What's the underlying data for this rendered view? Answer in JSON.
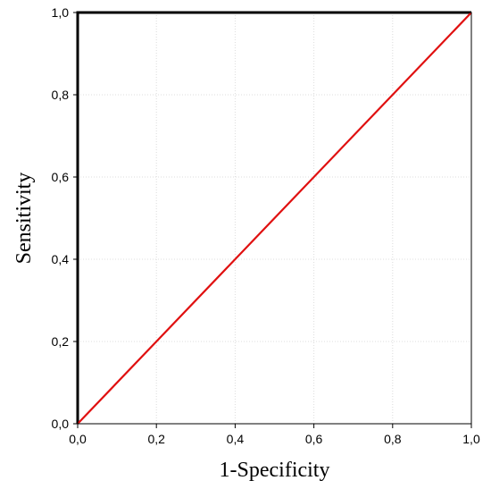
{
  "chart_data": {
    "type": "line",
    "xlabel": "1-Specificity",
    "ylabel": "Sensitivity",
    "xlim": [
      0,
      1
    ],
    "ylim": [
      0,
      1
    ],
    "x_ticks": [
      0.0,
      0.2,
      0.4,
      0.6,
      0.8,
      1.0
    ],
    "y_ticks": [
      0.0,
      0.2,
      0.4,
      0.6,
      0.8,
      1.0
    ],
    "x_tick_labels": [
      "0,0",
      "0,2",
      "0,4",
      "0,6",
      "0,8",
      "1,0"
    ],
    "y_tick_labels": [
      "0,0",
      "0,2",
      "0,4",
      "0,6",
      "0,8",
      "1,0"
    ],
    "grid": true,
    "series": [
      {
        "color": "#000000",
        "points": [
          [
            0,
            0
          ],
          [
            0,
            1
          ],
          [
            1,
            1
          ]
        ]
      },
      {
        "color": "#e01010",
        "points": [
          [
            0,
            0
          ],
          [
            1,
            1
          ]
        ]
      }
    ]
  }
}
